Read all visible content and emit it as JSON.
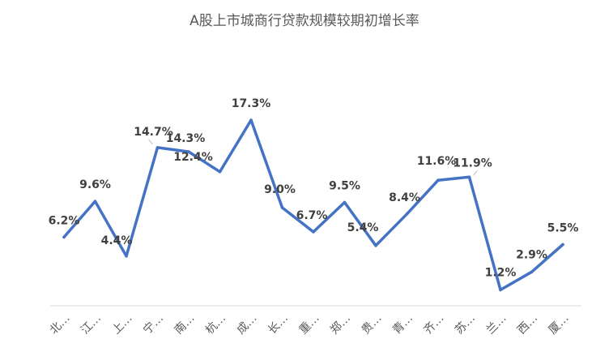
{
  "chart_data": {
    "type": "line",
    "title": "A股上市城商行贷款规模较期初增长率",
    "categories": [
      "北…",
      "江…",
      "上…",
      "宁…",
      "南…",
      "杭…",
      "成…",
      "长…",
      "重…",
      "郑…",
      "贵…",
      "青…",
      "齐…",
      "苏…",
      "兰…",
      "西…",
      "厦…"
    ],
    "values": [
      6.2,
      9.6,
      4.4,
      14.7,
      14.3,
      12.4,
      17.3,
      9.0,
      6.7,
      9.5,
      5.4,
      8.4,
      11.6,
      11.9,
      1.2,
      2.9,
      5.5
    ],
    "labels": [
      "6.2%",
      "9.6%",
      "4.4%",
      "14.7%",
      "14.3%",
      "12.4%",
      "17.3%",
      "9.0%",
      "6.7%",
      "9.5%",
      "5.4%",
      "8.4%",
      "11.6%",
      "11.9%",
      "1.2%",
      "2.9%",
      "5.5%"
    ],
    "series_color": "#4472C4",
    "grid": false,
    "legend": "none"
  }
}
